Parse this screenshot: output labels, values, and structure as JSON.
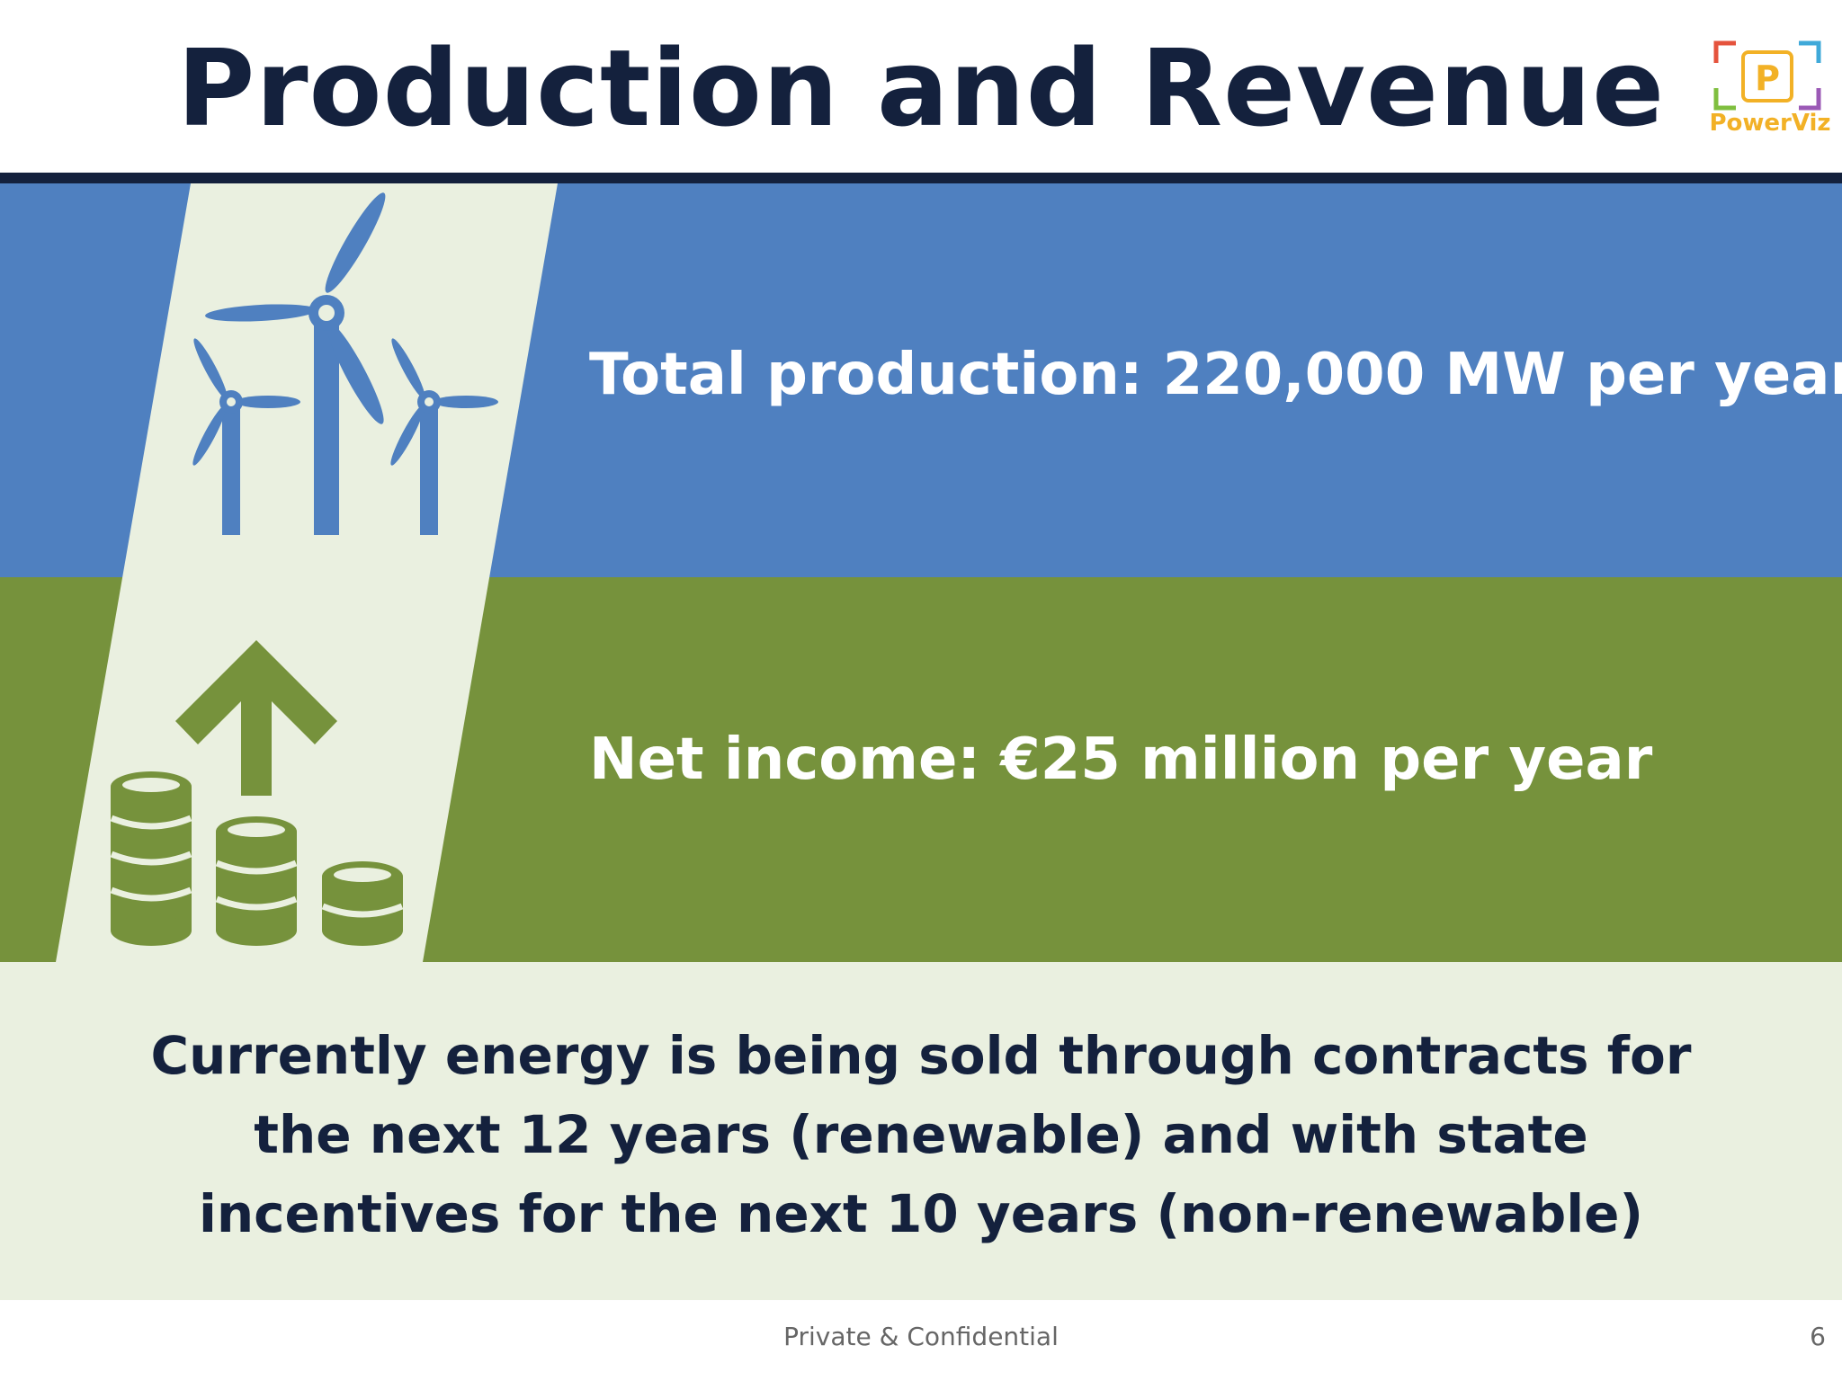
{
  "slide": {
    "title": "Production and Revenue",
    "production_text": "Total production: 220,000 MW per year",
    "income_text": "Net income:  €25 million per year",
    "note_text": "Currently energy is being sold through contracts for the next 12 years (renewable) and with state incentives for the next 10 years (non-renewable)",
    "footer_text": "Private & Confidential",
    "page_number": "6"
  },
  "logo": {
    "letter": "P",
    "name": "PowerViz"
  },
  "icons": {
    "top": "wind-turbines-icon",
    "bottom": "coins-arrow-up-icon"
  },
  "colors": {
    "title": "#14213d",
    "blue_band": "#4f80c0",
    "green_band": "#76923c",
    "cream": "#eaf0e0",
    "logo_accent": "#f2b126"
  }
}
